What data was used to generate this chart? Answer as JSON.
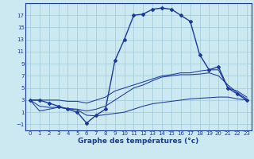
{
  "xlabel": "Graphe des températures (°c)",
  "background_color": "#cce8f0",
  "grid_color": "#9fc8d8",
  "line_color": "#1a3a9c",
  "x_hours": [
    0,
    1,
    2,
    3,
    4,
    5,
    6,
    7,
    8,
    9,
    10,
    11,
    12,
    13,
    14,
    15,
    16,
    17,
    18,
    19,
    20,
    21,
    22,
    23
  ],
  "temp_actual": [
    3.0,
    3.0,
    2.5,
    2.0,
    1.5,
    1.0,
    -0.8,
    0.5,
    1.5,
    9.5,
    13.0,
    17.0,
    17.2,
    18.0,
    18.2,
    18.0,
    17.0,
    16.0,
    10.5,
    8.0,
    8.5,
    5.0,
    4.0,
    3.0
  ],
  "line2": [
    3.0,
    1.2,
    1.5,
    1.8,
    1.6,
    1.4,
    0.5,
    0.4,
    0.6,
    0.8,
    1.0,
    1.5,
    2.0,
    2.4,
    2.6,
    2.8,
    3.0,
    3.2,
    3.3,
    3.4,
    3.5,
    3.5,
    3.2,
    3.0
  ],
  "line3": [
    3.0,
    3.0,
    3.0,
    3.0,
    2.8,
    2.8,
    2.5,
    3.0,
    3.5,
    4.5,
    5.0,
    5.5,
    6.0,
    6.5,
    7.0,
    7.2,
    7.5,
    7.5,
    7.8,
    8.0,
    8.0,
    5.0,
    4.5,
    3.5
  ],
  "line4": [
    3.0,
    2.0,
    1.8,
    1.8,
    1.6,
    1.5,
    1.2,
    1.5,
    2.0,
    3.0,
    4.0,
    5.0,
    5.5,
    6.2,
    6.8,
    7.0,
    7.2,
    7.2,
    7.3,
    7.5,
    7.0,
    5.5,
    4.2,
    3.2
  ],
  "ylim": [
    -2.0,
    19.0
  ],
  "xlim": [
    -0.5,
    23.5
  ],
  "yticks": [
    -1,
    1,
    3,
    5,
    7,
    9,
    11,
    13,
    15,
    17
  ],
  "xticks": [
    0,
    1,
    2,
    3,
    4,
    5,
    6,
    7,
    8,
    9,
    10,
    11,
    12,
    13,
    14,
    15,
    16,
    17,
    18,
    19,
    20,
    21,
    22,
    23
  ],
  "tick_fontsize": 5.0,
  "xlabel_fontsize": 6.5,
  "marker": "D",
  "markersize": 2.0,
  "linewidth_main": 1.0,
  "linewidth_secondary": 0.75
}
